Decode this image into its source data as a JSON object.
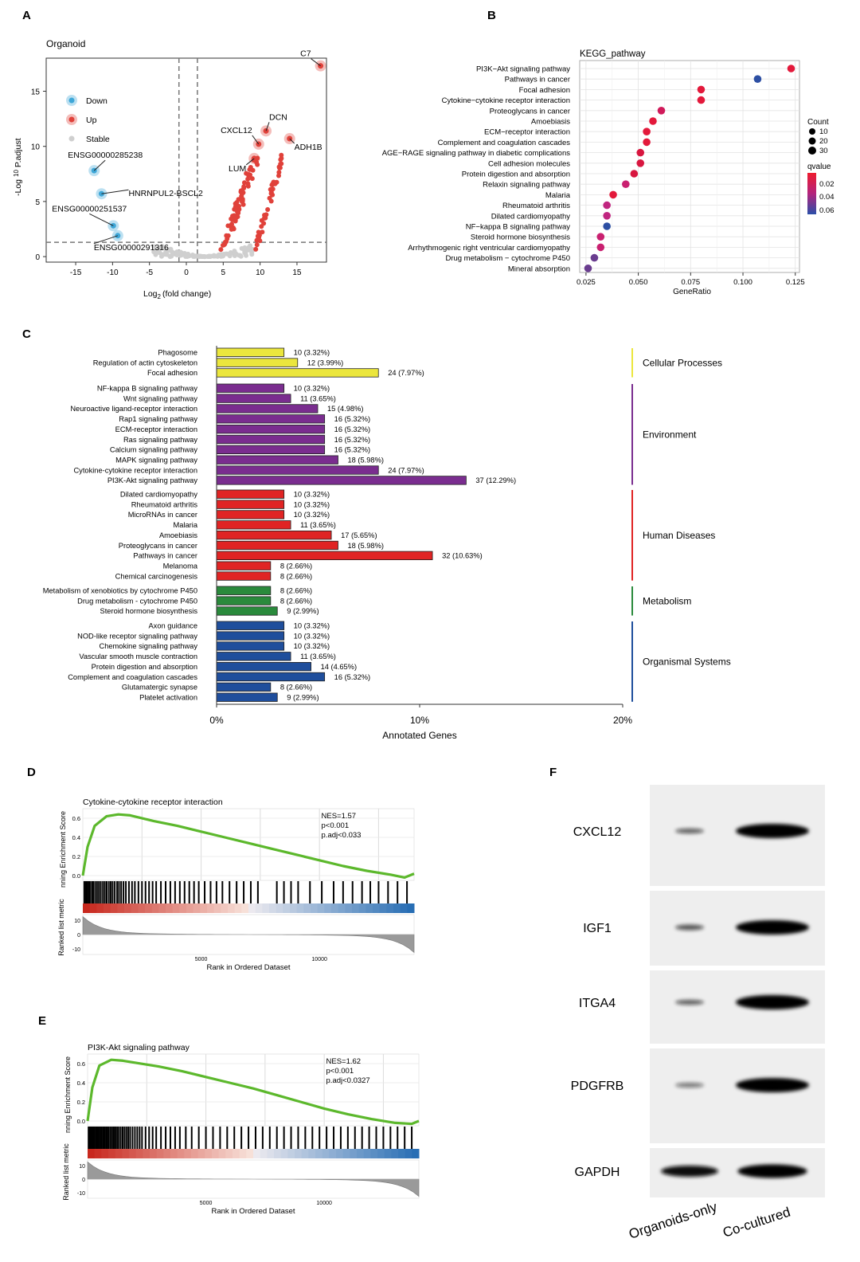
{
  "panels": {
    "a": "A",
    "b": "B",
    "c": "C",
    "d": "D",
    "e": "E",
    "f": "F"
  },
  "chart_data": [
    {
      "id": "A",
      "type": "scatter",
      "title": "Organoid",
      "xlabel_main": "Log",
      "xlabel_sub": "2",
      "xlabel_rest": "(fold change)",
      "ylabel_main": "-Log",
      "ylabel_sub": "10",
      "ylabel_rest": "P.adjust",
      "xlim": [
        -19,
        19
      ],
      "ylim": [
        -0.5,
        18
      ],
      "xticks": [
        -15,
        -10,
        -5,
        0,
        5,
        10,
        15
      ],
      "yticks": [
        0,
        5,
        10,
        15
      ],
      "thresholds": {
        "x": [
          -1,
          1.5
        ],
        "y": 1.3
      },
      "legend_position": "top-left",
      "legend": [
        {
          "label": "Down",
          "color": "#3ea7d8"
        },
        {
          "label": "Up",
          "color": "#e0413a"
        },
        {
          "label": "Stable",
          "color": "#cfcfcf"
        }
      ],
      "colors": {
        "down": "#3ea7d8",
        "up": "#e0413a",
        "stable": "#cfcfcf"
      },
      "labeled_points": [
        {
          "label": "C7",
          "x": 18.2,
          "y": 17.3,
          "group": "up"
        },
        {
          "label": "DCN",
          "x": 10.8,
          "y": 11.4,
          "group": "up"
        },
        {
          "label": "CXCL12",
          "x": 9.8,
          "y": 10.2,
          "group": "up"
        },
        {
          "label": "ADH1B",
          "x": 14.0,
          "y": 10.7,
          "group": "up"
        },
        {
          "label": "LUM",
          "x": 9.2,
          "y": 8.9,
          "group": "up"
        },
        {
          "label": "ENSG00000285238",
          "x": -12.5,
          "y": 7.8,
          "group": "down"
        },
        {
          "label": "HNRNPUL2-BSCL2",
          "x": -11.5,
          "y": 5.7,
          "group": "down"
        },
        {
          "label": "ENSG00000251537",
          "x": -9.9,
          "y": 2.8,
          "group": "down"
        },
        {
          "label": "ENSG00000291316",
          "x": -9.3,
          "y": 1.9,
          "group": "down"
        }
      ]
    },
    {
      "id": "B",
      "type": "scatter",
      "title": "KEGG_pathway",
      "xlabel": "GeneRatio",
      "xlim": [
        0.022,
        0.127
      ],
      "xticks": [
        0.025,
        0.05,
        0.075,
        0.1,
        0.125
      ],
      "xtick_labels": [
        "0.025",
        "0.050",
        "0.075",
        "0.100",
        "0.125"
      ],
      "categories": [
        "PI3K−Akt signaling pathway",
        "Pathways in cancer",
        "Focal adhesion",
        "Cytokine−cytokine receptor interaction",
        "Proteoglycans in cancer",
        "Amoebiasis",
        "ECM−receptor interaction",
        "Complement and coagulation cascades",
        "AGE−RAGE signaling pathway in diabetic complications",
        "Cell adhesion molecules",
        "Protein digestion and absorption",
        "Relaxin signaling pathway",
        "Malaria",
        "Rheumatoid arthritis",
        "Dilated cardiomyopathy",
        "NF−kappa B signaling pathway",
        "Steroid hormone biosynthesis",
        "Arrhythmogenic right ventricular cardiomyopathy",
        "Drug metabolism − cytochrome P450",
        "Mineral absorption"
      ],
      "gene_ratio": [
        0.123,
        0.107,
        0.08,
        0.08,
        0.061,
        0.057,
        0.054,
        0.054,
        0.051,
        0.051,
        0.048,
        0.044,
        0.038,
        0.035,
        0.035,
        0.035,
        0.032,
        0.032,
        0.029,
        0.026
      ],
      "colors": [
        "#e3193b",
        "#2d4fa3",
        "#e3193b",
        "#e3193b",
        "#d01a5a",
        "#e3193b",
        "#e3193b",
        "#e3193b",
        "#d8163f",
        "#d8163f",
        "#d8163f",
        "#c92070",
        "#e3193b",
        "#c02680",
        "#c02680",
        "#2d4fa3",
        "#c92070",
        "#c92070",
        "#6a3d8f",
        "#6a3d8f"
      ],
      "legend_count_title": "Count",
      "legend_count_values": [
        "10",
        "20",
        "30"
      ],
      "legend_q_title": "qvalue",
      "legend_q_values": [
        "0.02",
        "0.04",
        "0.06"
      ]
    },
    {
      "id": "C",
      "type": "bar",
      "xlabel": "Annotated Genes",
      "xlim": [
        0,
        20
      ],
      "xticks": [
        "0%",
        "10%",
        "20%"
      ],
      "groups": [
        {
          "name": "Cellular Processes",
          "color": "#ebe63d",
          "items": [
            {
              "label": "Phagosome",
              "percent": 3.32,
              "text": "10 (3.32%)"
            },
            {
              "label": "Regulation of actin cytoskeleton",
              "percent": 3.99,
              "text": "12 (3.99%)"
            },
            {
              "label": "Focal adhesion",
              "percent": 7.97,
              "text": "24 (7.97%)"
            }
          ]
        },
        {
          "name": "Environment",
          "color": "#7a2d8f",
          "items": [
            {
              "label": "NF-kappa B signaling pathway",
              "percent": 3.32,
              "text": "10 (3.32%)"
            },
            {
              "label": "Wnt signaling pathway",
              "percent": 3.65,
              "text": "11 (3.65%)"
            },
            {
              "label": "Neuroactive ligand-receptor interaction",
              "percent": 4.98,
              "text": "15 (4.98%)"
            },
            {
              "label": "Rap1 signaling pathway",
              "percent": 5.32,
              "text": "16 (5.32%)"
            },
            {
              "label": "ECM-receptor interaction",
              "percent": 5.32,
              "text": "16 (5.32%)"
            },
            {
              "label": "Ras signaling pathway",
              "percent": 5.32,
              "text": "16 (5.32%)"
            },
            {
              "label": "Calcium signaling pathway",
              "percent": 5.32,
              "text": "16 (5.32%)"
            },
            {
              "label": "MAPK signaling pathway",
              "percent": 5.98,
              "text": "18 (5.98%)"
            },
            {
              "label": "Cytokine-cytokine receptor interaction",
              "percent": 7.97,
              "text": "24 (7.97%)"
            },
            {
              "label": "PI3K-Akt signaling pathway",
              "percent": 12.29,
              "text": "37 (12.29%)"
            }
          ]
        },
        {
          "name": "Human Diseases",
          "color": "#e02424",
          "items": [
            {
              "label": "Dilated cardiomyopathy",
              "percent": 3.32,
              "text": "10 (3.32%)"
            },
            {
              "label": "Rheumatoid arthritis",
              "percent": 3.32,
              "text": "10 (3.32%)"
            },
            {
              "label": "MicroRNAs in cancer",
              "percent": 3.32,
              "text": "10 (3.32%)"
            },
            {
              "label": "Malaria",
              "percent": 3.65,
              "text": "11 (3.65%)"
            },
            {
              "label": "Amoebiasis",
              "percent": 5.65,
              "text": "17 (5.65%)"
            },
            {
              "label": "Proteoglycans in cancer",
              "percent": 5.98,
              "text": "18 (5.98%)"
            },
            {
              "label": "Pathways in cancer",
              "percent": 10.63,
              "text": "32 (10.63%)"
            },
            {
              "label": "Melanoma",
              "percent": 2.66,
              "text": "8 (2.66%)"
            },
            {
              "label": "Chemical carcinogenesis",
              "percent": 2.66,
              "text": "8 (2.66%)"
            }
          ]
        },
        {
          "name": "Metabolism",
          "color": "#2a8a3c",
          "items": [
            {
              "label": "Metabolism of xenobiotics by cytochrome P450",
              "percent": 2.66,
              "text": "8 (2.66%)"
            },
            {
              "label": "Drug metabolism - cytochrome P450",
              "percent": 2.66,
              "text": "8 (2.66%)"
            },
            {
              "label": "Steroid hormone biosynthesis",
              "percent": 2.99,
              "text": "9 (2.99%)"
            }
          ]
        },
        {
          "name": "Organismal Systems",
          "color": "#1f4e9c",
          "items": [
            {
              "label": "Axon guidance",
              "percent": 3.32,
              "text": "10 (3.32%)"
            },
            {
              "label": "NOD-like receptor signaling pathway",
              "percent": 3.32,
              "text": "10 (3.32%)"
            },
            {
              "label": "Chemokine signaling pathway",
              "percent": 3.32,
              "text": "10 (3.32%)"
            },
            {
              "label": "Vascular smooth muscle contraction",
              "percent": 3.65,
              "text": "11 (3.65%)"
            },
            {
              "label": "Protein digestion and absorption",
              "percent": 4.65,
              "text": "14 (4.65%)"
            },
            {
              "label": "Complement and coagulation cascades",
              "percent": 5.32,
              "text": "16 (5.32%)"
            },
            {
              "label": "Glutamatergic synapse",
              "percent": 2.66,
              "text": "8 (2.66%)"
            },
            {
              "label": "Platelet activation",
              "percent": 2.99,
              "text": "9 (2.99%)"
            }
          ]
        }
      ]
    },
    {
      "id": "D",
      "type": "line",
      "title": "Cytokine-cytokine receptor interaction",
      "ylabel_top": "nning Enrichment Score",
      "ylabel_bottom": "Ranked list metric",
      "xlabel": "Rank in Ordered Dataset",
      "x_max": 14000,
      "xticks": [
        5000,
        10000
      ],
      "es_yticks": [
        "0.6",
        "0.4",
        "0.2",
        "0.0"
      ],
      "metric_yticks": [
        "10",
        "0",
        "-10"
      ],
      "stats": [
        "NES=1.57",
        "p<0.001",
        "p.adj<0.033"
      ],
      "curve": {
        "x": [
          0,
          200,
          500,
          1000,
          1500,
          2000,
          3000,
          4000,
          5000,
          6000,
          7000,
          8000,
          9000,
          10000,
          11000,
          12000,
          13000,
          13600,
          14000
        ],
        "y": [
          0.0,
          0.3,
          0.52,
          0.62,
          0.64,
          0.63,
          0.57,
          0.52,
          0.46,
          0.4,
          0.34,
          0.28,
          0.22,
          0.16,
          0.1,
          0.05,
          0.01,
          -0.02,
          0.02
        ]
      },
      "hits": [
        60,
        120,
        180,
        240,
        300,
        380,
        440,
        520,
        600,
        680,
        760,
        850,
        930,
        1010,
        1100,
        1180,
        1260,
        1350,
        1450,
        1530,
        1620,
        1720,
        1820,
        1950,
        2080,
        2200,
        2350,
        2500,
        2650,
        2800,
        2950,
        3100,
        3300,
        3500,
        3700,
        3900,
        4100,
        4300,
        4500,
        4700,
        4900,
        5150,
        5400,
        5650,
        5900,
        6200,
        6500,
        6800,
        7100,
        7400,
        8200,
        8500,
        8800,
        9100,
        9600,
        10100,
        10600,
        11000,
        11400,
        11800,
        12150,
        12500,
        12900,
        13300,
        13700
      ],
      "curve_color": "#5cb82c"
    },
    {
      "id": "E",
      "type": "line",
      "title": "PI3K-Akt signaling pathway",
      "ylabel_top": "nning Enrichment Score",
      "ylabel_bottom": "Ranked list metric",
      "xlabel": "Rank in Ordered Dataset",
      "x_max": 14000,
      "xticks": [
        5000,
        10000
      ],
      "es_yticks": [
        "0.6",
        "0.4",
        "0.2",
        "0.0"
      ],
      "metric_yticks": [
        "10",
        "0",
        "-10"
      ],
      "stats": [
        "NES=1.62",
        "p<0.001",
        "p.adj<0.0327"
      ],
      "curve": {
        "x": [
          0,
          200,
          500,
          1000,
          1500,
          2000,
          3000,
          4000,
          5000,
          6000,
          7000,
          8000,
          9000,
          10000,
          11000,
          12000,
          13000,
          13700,
          14000
        ],
        "y": [
          0.0,
          0.35,
          0.58,
          0.64,
          0.63,
          0.61,
          0.57,
          0.52,
          0.46,
          0.4,
          0.34,
          0.27,
          0.2,
          0.13,
          0.07,
          0.02,
          -0.02,
          -0.03,
          0.0
        ]
      },
      "hits": [
        40,
        90,
        140,
        190,
        240,
        300,
        360,
        420,
        480,
        540,
        600,
        660,
        720,
        780,
        840,
        900,
        970,
        1040,
        1110,
        1180,
        1250,
        1320,
        1400,
        1480,
        1560,
        1640,
        1720,
        1800,
        1900,
        2000,
        2100,
        2200,
        2300,
        2450,
        2600,
        2750,
        2900,
        3100,
        3300,
        3500,
        3700,
        3900,
        4150,
        4400,
        4700,
        5000,
        5300,
        5600,
        5900,
        6200,
        6500,
        6800,
        7100,
        7400,
        7700,
        8000,
        8300,
        8600,
        8900,
        9200,
        9500,
        9800,
        10100,
        10400,
        10700,
        11000,
        11300,
        11600,
        11900,
        12200,
        12500,
        12800,
        13100,
        13400,
        13700
      ],
      "curve_color": "#5cb82c"
    }
  ],
  "western_blot": {
    "bands": [
      {
        "label": "CXCL12",
        "left": 0.45,
        "right": 1.0
      },
      {
        "label": "IGF1",
        "left": 0.5,
        "right": 1.0
      },
      {
        "label": "ITGA4",
        "left": 0.45,
        "right": 1.0
      },
      {
        "label": "PDGFRB",
        "left": 0.25,
        "right": 1.0
      },
      {
        "label": "GAPDH",
        "left": 1.0,
        "right": 0.95
      }
    ],
    "columns": [
      "Organoids-only",
      "Co-cultured"
    ]
  }
}
